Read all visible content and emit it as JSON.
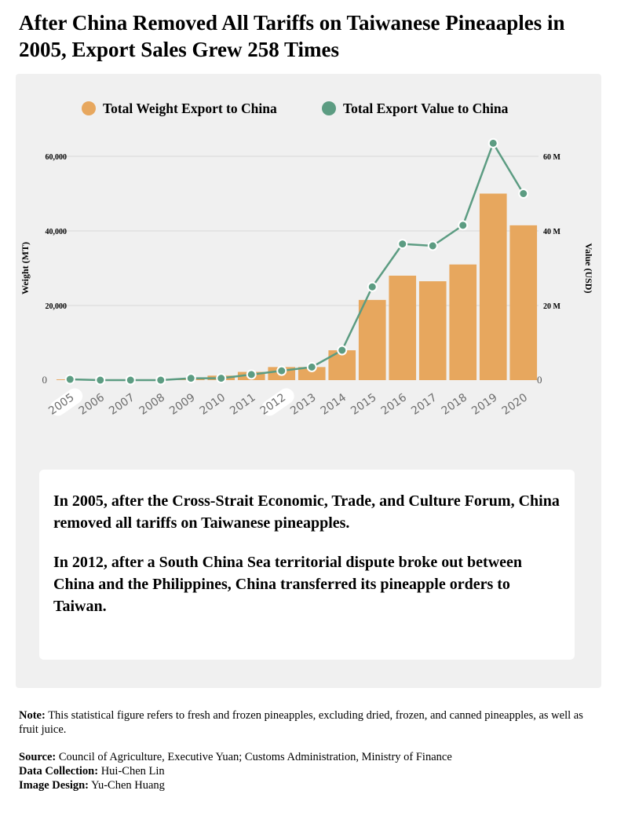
{
  "title": "After China Removed All Tariffs on Taiwanese Pineaaples in 2005, Export Sales Grew 258 Times",
  "chart_data": {
    "type": "bar+line",
    "categories": [
      "2005",
      "2006",
      "2007",
      "2008",
      "2009",
      "2010",
      "2011",
      "2012",
      "2013",
      "2014",
      "2015",
      "2016",
      "2017",
      "2018",
      "2019",
      "2020"
    ],
    "series": [
      {
        "name": "Total Weight Export to China",
        "type": "bar",
        "axis": "left",
        "values": [
          200,
          150,
          150,
          150,
          500,
          1200,
          2200,
          3500,
          3500,
          8000,
          21500,
          28000,
          26500,
          31000,
          50000,
          41500
        ]
      },
      {
        "name": "Total Export Value to China",
        "type": "line",
        "axis": "right",
        "values": [
          200000,
          0,
          0,
          0,
          500000,
          500000,
          1500000,
          2500000,
          3500000,
          8000000,
          25000000,
          36500000,
          36000000,
          41500000,
          63500000,
          50000000
        ]
      }
    ],
    "ylabel": "Weight (MT)",
    "y2label": "Value (USD)",
    "ylim": [
      0,
      60000
    ],
    "y2lim": [
      0,
      60000000
    ],
    "yticks": [
      "0",
      "20,000",
      "40,000",
      "60,000"
    ],
    "y2ticks": [
      "0",
      "20 M",
      "40 M",
      "60 M"
    ],
    "grid": true,
    "legend": "top",
    "highlight_categories": [
      "2005",
      "2012"
    ],
    "colors": {
      "bar": "#e7a75e",
      "line": "#5c9c82",
      "grid": "#d8d8d8",
      "panel": "#f0f0f0"
    }
  },
  "callout": {
    "p1": "In 2005, after the Cross-Strait Economic, Trade, and Culture Forum, China removed all tariffs on Taiwanese pineapples.",
    "p2": "In 2012, after a South China Sea territorial dispute broke out between China and the Philippines,  China transferred its pineapple orders to Taiwan."
  },
  "footer": {
    "note_label": "Note:",
    "note_text": " This statistical figure refers to fresh and frozen pineapples, excluding dried, frozen, and canned pineapples, as well as fruit juice.",
    "source_label": "Source:",
    "source_text": " Council of Agriculture, Executive Yuan; Customs Administration, Ministry of Finance",
    "collection_label": "Data Collection:",
    "collection_text": " Hui-Chen Lin",
    "design_label": "Image Design:",
    "design_text": " Yu-Chen Huang"
  }
}
